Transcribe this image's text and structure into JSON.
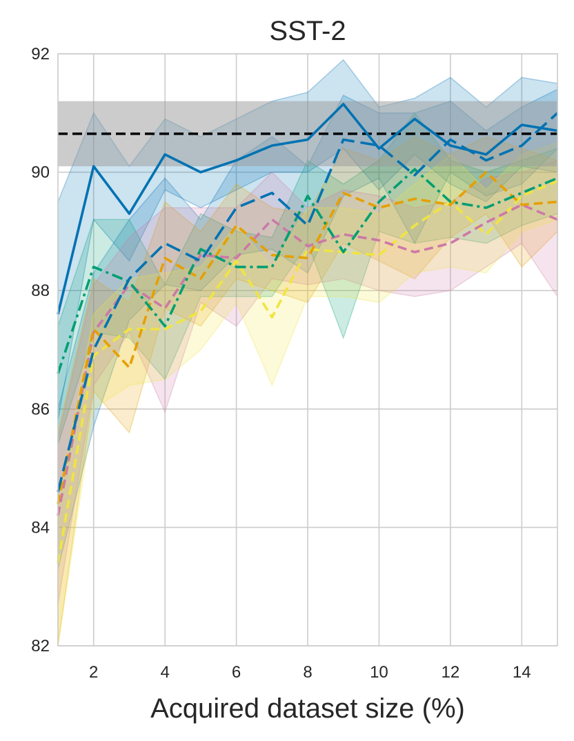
{
  "chart_data": {
    "type": "line",
    "title": "SST-2",
    "xlabel": "Acquired dataset size (%)",
    "ylabel": "",
    "xlim": [
      1,
      15
    ],
    "ylim": [
      82,
      92
    ],
    "xticks": [
      2,
      4,
      6,
      8,
      10,
      12,
      14
    ],
    "yticks": [
      82,
      84,
      86,
      88,
      90,
      92
    ],
    "grid": true,
    "x": [
      1,
      2,
      3,
      4,
      5,
      6,
      7,
      8,
      9,
      10,
      11,
      12,
      13,
      14,
      15
    ],
    "reference": {
      "value": 90.65,
      "band": [
        90.1,
        91.2
      ],
      "color": "#000000",
      "band_color": "#9a9a9a",
      "style": "dashed"
    },
    "series": [
      {
        "color": "#0072B2",
        "style": "solid",
        "values": [
          87.6,
          90.1,
          89.3,
          90.3,
          90.0,
          90.2,
          90.45,
          90.55,
          91.15,
          90.4,
          90.9,
          90.45,
          90.3,
          90.8,
          90.7
        ],
        "lower": [
          85.8,
          89.2,
          88.5,
          89.7,
          89.4,
          89.7,
          90.0,
          90.0,
          90.4,
          89.7,
          90.3,
          89.8,
          89.5,
          90.1,
          90.0
        ],
        "upper": [
          89.5,
          91.0,
          90.1,
          90.9,
          90.6,
          90.9,
          91.2,
          91.35,
          91.9,
          91.1,
          91.25,
          91.6,
          91.1,
          91.6,
          91.5
        ]
      },
      {
        "color": "#0072B2",
        "style": "longdash",
        "values": [
          84.6,
          87.0,
          88.2,
          88.8,
          88.5,
          89.4,
          89.65,
          89.1,
          90.55,
          90.45,
          89.95,
          90.55,
          90.2,
          90.45,
          91.0
        ],
        "lower": [
          83.3,
          85.7,
          87.5,
          88.1,
          88.0,
          88.6,
          88.7,
          88.3,
          89.6,
          89.9,
          88.8,
          90.0,
          89.6,
          89.8,
          90.4
        ],
        "upper": [
          86.0,
          88.3,
          89.2,
          89.9,
          89.2,
          90.2,
          90.6,
          90.1,
          91.3,
          91.0,
          91.0,
          91.2,
          90.7,
          91.1,
          91.4
        ]
      },
      {
        "color": "#009E73",
        "style": "dashdot",
        "values": [
          86.6,
          88.4,
          88.15,
          87.4,
          88.7,
          88.4,
          88.4,
          89.6,
          88.65,
          89.5,
          90.05,
          89.5,
          89.4,
          89.65,
          89.9
        ],
        "lower": [
          85.4,
          87.3,
          87.2,
          86.5,
          87.9,
          87.9,
          87.9,
          88.8,
          87.2,
          89.0,
          88.8,
          88.9,
          88.8,
          89.1,
          89.3
        ],
        "upper": [
          87.4,
          89.2,
          89.2,
          88.1,
          89.3,
          89.0,
          88.9,
          90.2,
          89.8,
          90.2,
          91.0,
          90.2,
          90.0,
          90.2,
          90.4
        ]
      },
      {
        "color": "#E69F00",
        "style": "dashed",
        "values": [
          84.4,
          87.35,
          86.7,
          88.55,
          88.2,
          89.1,
          88.6,
          88.55,
          89.65,
          89.4,
          89.55,
          89.45,
          90.0,
          89.45,
          89.5
        ],
        "lower": [
          82.0,
          86.3,
          85.6,
          87.7,
          87.4,
          88.2,
          88.0,
          87.8,
          88.8,
          88.5,
          88.2,
          88.9,
          89.3,
          88.4,
          89.0
        ],
        "upper": [
          85.6,
          88.2,
          87.8,
          89.5,
          89.0,
          89.8,
          89.4,
          89.3,
          90.4,
          90.2,
          90.6,
          90.3,
          90.6,
          90.4,
          90.2
        ]
      },
      {
        "color": "#CC79A7",
        "style": "dashed",
        "values": [
          84.2,
          87.3,
          88.1,
          87.7,
          88.6,
          88.55,
          89.2,
          88.75,
          88.95,
          88.85,
          88.65,
          88.8,
          89.15,
          89.45,
          89.2
        ],
        "lower": [
          82.7,
          86.4,
          87.3,
          85.95,
          87.8,
          87.4,
          88.2,
          88.1,
          88.2,
          88.0,
          87.9,
          88.0,
          88.4,
          88.8,
          87.9
        ],
        "upper": [
          85.5,
          88.1,
          88.9,
          89.4,
          89.4,
          89.4,
          90.0,
          89.4,
          89.7,
          89.6,
          89.4,
          89.5,
          89.9,
          90.0,
          90.2
        ]
      },
      {
        "color": "#F0E442",
        "style": "dashed",
        "values": [
          83.4,
          86.9,
          87.35,
          87.35,
          87.65,
          88.5,
          87.55,
          88.7,
          88.65,
          88.6,
          89.1,
          89.5,
          88.95,
          89.6,
          89.85
        ],
        "lower": [
          82.0,
          86.0,
          86.4,
          86.5,
          87.0,
          87.8,
          86.4,
          87.9,
          87.9,
          87.8,
          88.3,
          88.4,
          88.3,
          89.0,
          89.2
        ],
        "upper": [
          84.4,
          87.6,
          88.2,
          88.3,
          88.4,
          89.1,
          88.4,
          89.4,
          89.4,
          89.3,
          89.8,
          90.3,
          89.7,
          90.3,
          90.5
        ]
      }
    ]
  }
}
